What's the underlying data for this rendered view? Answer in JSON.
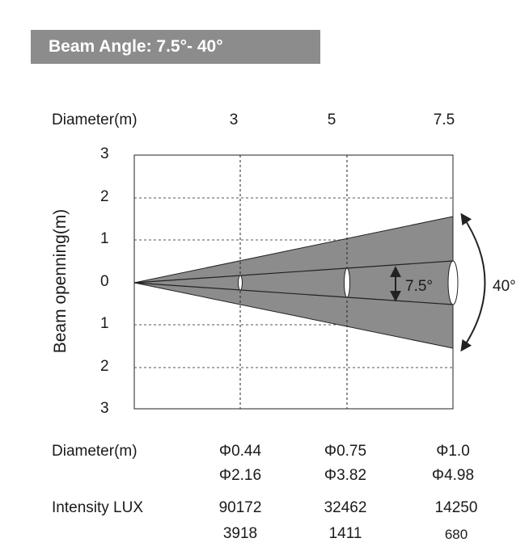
{
  "header": {
    "title": "Beam Angle: 7.5°- 40°"
  },
  "diagram": {
    "top_axis_label": "Diameter(m)",
    "distances": [
      "3",
      "5",
      "7.5"
    ],
    "y_axis_label": "Beam openning(m)",
    "y_ticks": [
      "3",
      "2",
      "1",
      "0",
      "1",
      "2",
      "3"
    ],
    "narrow_angle_label": "7.5°",
    "wide_angle_label": "40°",
    "colors": {
      "wide_beam": "#8c8c8c",
      "narrow_beam": "#8c8c8c",
      "grid": "#555555",
      "lines": "#222222"
    }
  },
  "table": {
    "diameter_label": "Diameter(m)",
    "diameter_row1": [
      "Φ0.44",
      "Φ0.75",
      "Φ1.0"
    ],
    "diameter_row2": [
      "Φ2.16",
      "Φ3.82",
      "Φ4.98"
    ],
    "intensity_label": "Intensity LUX",
    "intensity_row1": [
      "90172",
      "32462",
      "14250"
    ],
    "intensity_row2": [
      "3918",
      "1411",
      "680"
    ]
  }
}
